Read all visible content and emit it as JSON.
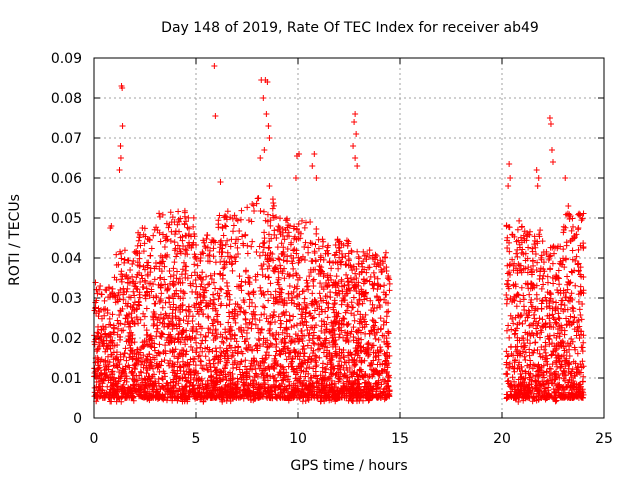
{
  "chart_data": {
    "type": "scatter",
    "title": "Day 148 of 2019, Rate Of TEC Index for receiver ab49",
    "xlabel": "GPS time / hours",
    "ylabel": "ROTI / TECUs",
    "xlim": [
      0,
      25
    ],
    "ylim": [
      0,
      0.09
    ],
    "x_ticks": [
      "0",
      "5",
      "10",
      "15",
      "20",
      "25"
    ],
    "y_ticks": [
      "0",
      "0.01",
      "0.02",
      "0.03",
      "0.04",
      "0.05",
      "0.06",
      "0.07",
      "0.08",
      "0.09"
    ],
    "grid": true,
    "marker": "+",
    "color": "#ff0000",
    "series": [
      {
        "name": "ROTI",
        "segments": [
          {
            "x_start": 0.0,
            "x_end": 14.5
          },
          {
            "x_start": 20.2,
            "x_end": 24.0
          }
        ],
        "outliers": [
          [
            1.35,
            0.083
          ],
          [
            1.38,
            0.0825
          ],
          [
            1.4,
            0.073
          ],
          [
            1.3,
            0.068
          ],
          [
            1.32,
            0.065
          ],
          [
            1.25,
            0.062
          ],
          [
            0.85,
            0.048
          ],
          [
            0.8,
            0.0475
          ],
          [
            5.9,
            0.088
          ],
          [
            5.95,
            0.0755
          ],
          [
            6.2,
            0.059
          ],
          [
            8.2,
            0.0845
          ],
          [
            8.4,
            0.0845
          ],
          [
            8.5,
            0.084
          ],
          [
            8.3,
            0.08
          ],
          [
            8.45,
            0.076
          ],
          [
            8.55,
            0.073
          ],
          [
            8.6,
            0.07
          ],
          [
            8.35,
            0.067
          ],
          [
            8.15,
            0.065
          ],
          [
            8.6,
            0.058
          ],
          [
            10.05,
            0.066
          ],
          [
            9.95,
            0.0655
          ],
          [
            10.8,
            0.066
          ],
          [
            10.7,
            0.063
          ],
          [
            10.9,
            0.06
          ],
          [
            9.9,
            0.06
          ],
          [
            12.8,
            0.076
          ],
          [
            12.75,
            0.074
          ],
          [
            12.85,
            0.071
          ],
          [
            12.7,
            0.068
          ],
          [
            12.8,
            0.065
          ],
          [
            12.9,
            0.063
          ],
          [
            20.35,
            0.0635
          ],
          [
            20.4,
            0.06
          ],
          [
            20.3,
            0.058
          ],
          [
            21.7,
            0.062
          ],
          [
            21.8,
            0.06
          ],
          [
            21.75,
            0.058
          ],
          [
            22.35,
            0.075
          ],
          [
            22.4,
            0.0735
          ],
          [
            22.45,
            0.067
          ],
          [
            22.5,
            0.064
          ],
          [
            23.1,
            0.06
          ],
          [
            23.25,
            0.053
          ]
        ]
      }
    ]
  }
}
